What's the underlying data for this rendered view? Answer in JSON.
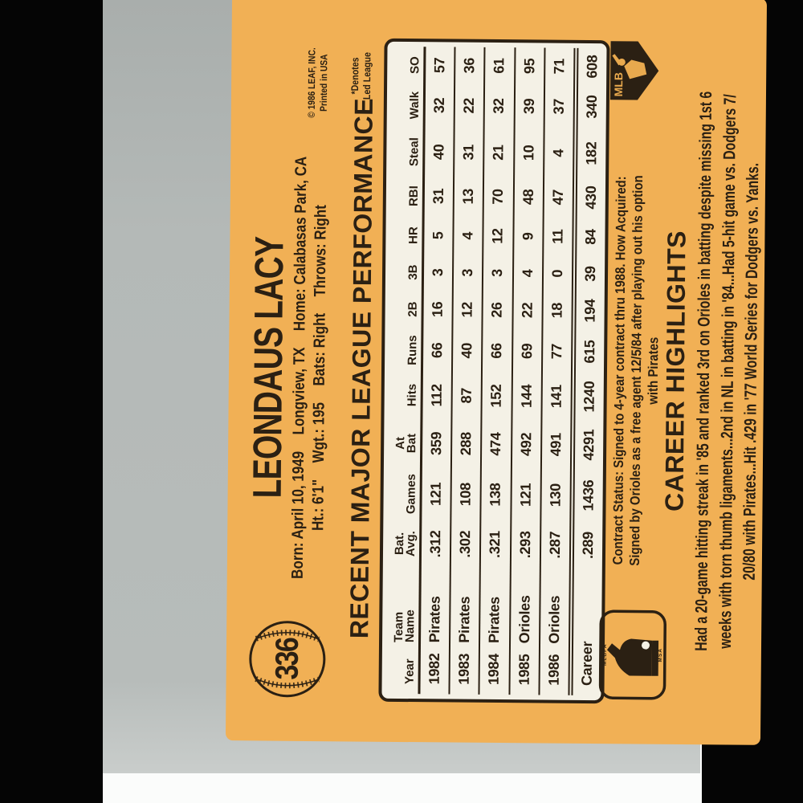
{
  "card": {
    "number": "336",
    "player_name": "LEONDAUS LACY",
    "bio_line1": [
      "Born: April 10, 1949",
      "Longview, TX",
      "Home: Calabasas Park, CA"
    ],
    "bio_line2": [
      "Ht.: 6'1\"",
      "Wgt.: 195",
      "Bats: Right",
      "Throws: Right"
    ],
    "copyright_lines": [
      "© 1986 LEAF, INC.",
      "Printed in USA"
    ],
    "performance": {
      "title": "RECENT MAJOR LEAGUE PERFORMANCE",
      "note_lines": [
        "*Denotes",
        "Led League"
      ]
    },
    "stats_table": {
      "headers": [
        [
          "Year"
        ],
        [
          "Team",
          "Name"
        ],
        [
          "Bat.",
          "Avg."
        ],
        [
          "Games"
        ],
        [
          "At",
          "Bat"
        ],
        [
          "Hits"
        ],
        [
          "Runs"
        ],
        [
          "2B"
        ],
        [
          "3B"
        ],
        [
          "HR"
        ],
        [
          "RBI"
        ],
        [
          "Steal"
        ],
        [
          "Walk"
        ],
        [
          "SO"
        ]
      ],
      "rows": [
        {
          "career": false,
          "cells": [
            "1982",
            "Pirates",
            ".312",
            "121",
            "359",
            "112",
            "66",
            "16",
            "3",
            "5",
            "31",
            "40",
            "32",
            "57"
          ]
        },
        {
          "career": false,
          "cells": [
            "1983",
            "Pirates",
            ".302",
            "108",
            "288",
            "87",
            "40",
            "12",
            "3",
            "4",
            "13",
            "31",
            "22",
            "36"
          ]
        },
        {
          "career": false,
          "cells": [
            "1984",
            "Pirates",
            ".321",
            "138",
            "474",
            "152",
            "66",
            "26",
            "3",
            "12",
            "70",
            "21",
            "32",
            "61"
          ]
        },
        {
          "career": false,
          "cells": [
            "1985",
            "Orioles",
            ".293",
            "121",
            "492",
            "144",
            "69",
            "22",
            "4",
            "9",
            "48",
            "10",
            "39",
            "95"
          ]
        },
        {
          "career": false,
          "cells": [
            "1986",
            "Orioles",
            ".287",
            "130",
            "491",
            "141",
            "77",
            "18",
            "0",
            "11",
            "47",
            "4",
            "37",
            "71"
          ]
        },
        {
          "career": true,
          "cells": [
            "Career",
            "",
            ".289",
            "1436",
            "4291",
            "1240",
            "615",
            "194",
            "39",
            "84",
            "430",
            "182",
            "340",
            "608"
          ]
        }
      ]
    },
    "contract_lines": [
      "Contract Status: Signed to 4-year contract thru 1988. How Acquired:",
      "Signed by Orioles as a free agent 12/5/84 after playing out his option",
      "with Pirates"
    ],
    "career_highlights": {
      "title": "CAREER HIGHLIGHTS",
      "lines": [
        "Had a 20-game hitting streak in '85 and ranked 3rd on Orioles in batting despite missing 1st 6",
        "weeks with torn thumb ligaments...2nd in NL in batting in '84...Had 5-hit game vs. Dodgers 7/",
        "20/80 with Pirates...Hit .429 in '77 World Series for Dodgers vs. Yanks."
      ]
    },
    "logos": {
      "mlb_text": "MLB",
      "mlbpa_top_text": "MLBPA",
      "mlbpa_bottom_text": "MSA"
    },
    "colors": {
      "card_orange": "#f1b055",
      "ink": "#2b2013",
      "stats_box_cream": "#f4f1e6"
    }
  }
}
